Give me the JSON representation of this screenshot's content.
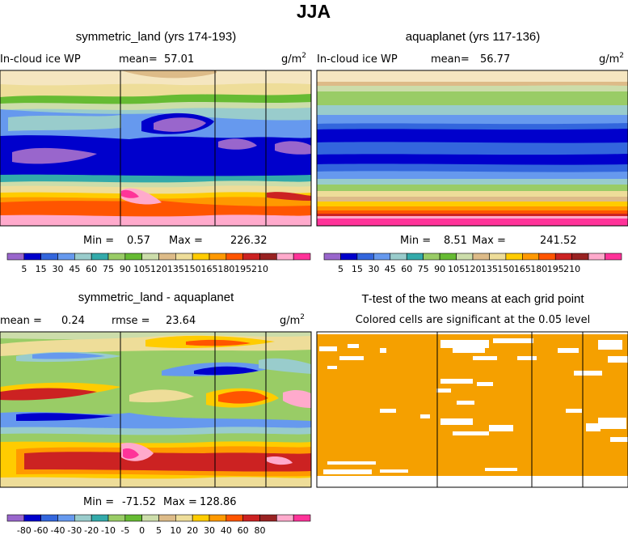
{
  "figure_title": "JJA",
  "chart_data": [
    {
      "type": "heatmap",
      "id": "p1",
      "title": "symmetric_land (yrs 174-193)",
      "left_label": "In-cloud ice WP",
      "mean_label": "mean=",
      "mean_value": "57.01",
      "units_base": "g/m",
      "units_exp": "2",
      "min_label": "Min =",
      "min_value": "0.57",
      "max_label": "Max =",
      "max_value": "226.32",
      "colorbar": {
        "colors": [
          "#9966cc",
          "#0000cc",
          "#3366dd",
          "#6699ee",
          "#99cccc",
          "#33aaaa",
          "#99cc66",
          "#66bb33",
          "#ccddaa",
          "#ddbb88",
          "#eedd99",
          "#ffcc00",
          "#ff9900",
          "#ff5500",
          "#cc2222",
          "#992222",
          "#ffaacc",
          "#ff3399"
        ],
        "labels": [
          "5",
          "15",
          "30",
          "45",
          "60",
          "75",
          "90",
          "105",
          "120",
          "135",
          "150",
          "165",
          "180",
          "195",
          "210"
        ]
      }
    },
    {
      "type": "heatmap",
      "id": "p2",
      "title": "aquaplanet (yrs 117-136)",
      "left_label": "In-cloud ice WP",
      "mean_label": "mean=",
      "mean_value": "56.77",
      "units_base": "g/m",
      "units_exp": "2",
      "min_label": "Min =",
      "min_value": "8.51",
      "max_label": "Max =",
      "max_value": "241.52",
      "colorbar": {
        "colors": [
          "#9966cc",
          "#0000cc",
          "#3366dd",
          "#6699ee",
          "#99cccc",
          "#33aaaa",
          "#99cc66",
          "#66bb33",
          "#ccddaa",
          "#ddbb88",
          "#eedd99",
          "#ffcc00",
          "#ff9900",
          "#ff5500",
          "#cc2222",
          "#992222",
          "#ffaacc",
          "#ff3399"
        ],
        "labels": [
          "5",
          "15",
          "30",
          "45",
          "60",
          "75",
          "90",
          "105",
          "120",
          "135",
          "150",
          "165",
          "180",
          "195",
          "210"
        ]
      }
    },
    {
      "type": "heatmap",
      "id": "p3",
      "title": "symmetric_land - aquaplanet",
      "left_label": "mean =",
      "mean_label": "",
      "mean_value": "0.24",
      "rmse_label": "rmse =",
      "rmse_value": "23.64",
      "units_base": "g/m",
      "units_exp": "2",
      "min_label": "Min =",
      "min_value": "-71.52",
      "max_label": "Max =",
      "max_value": "128.86",
      "colorbar": {
        "colors": [
          "#9966cc",
          "#0000cc",
          "#3366dd",
          "#6699ee",
          "#99cccc",
          "#33aaaa",
          "#99cc66",
          "#66bb33",
          "#ccddaa",
          "#ddbb88",
          "#eedd99",
          "#ffcc00",
          "#ff9900",
          "#ff5500",
          "#cc2222",
          "#992222",
          "#ffaacc",
          "#ff3399"
        ],
        "labels": [
          "-80",
          "-60",
          "-40",
          "-30",
          "-20",
          "-10",
          "-5",
          "0",
          "5",
          "10",
          "20",
          "30",
          "40",
          "60",
          "80"
        ]
      }
    },
    {
      "type": "heatmap",
      "id": "p4",
      "title": "T-test of the two means at each grid point",
      "subtitle": "Colored cells are significant at the 0.05 level",
      "significant_color": "#f5a000"
    }
  ]
}
